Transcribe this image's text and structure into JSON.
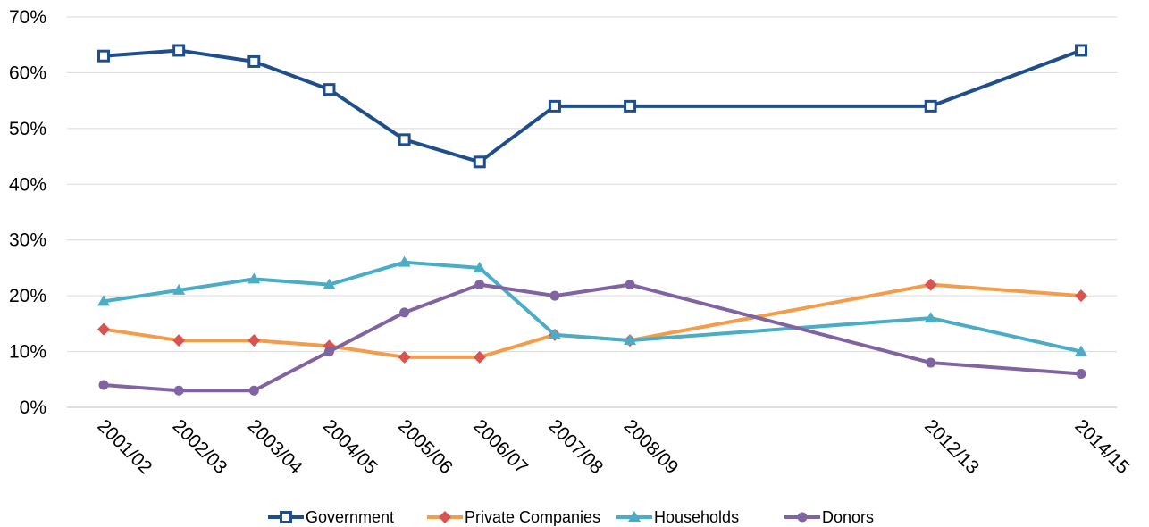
{
  "chart_data": {
    "type": "line",
    "title": "",
    "xlabel": "",
    "ylabel": "",
    "categories": [
      "2001/02",
      "2002/03",
      "2003/04",
      "2004/05",
      "2005/06",
      "2006/07",
      "2007/08",
      "2008/09",
      "2012/13",
      "2014/15"
    ],
    "x_years": [
      2001,
      2002,
      2003,
      2004,
      2005,
      2006,
      2007,
      2008,
      2012,
      2014
    ],
    "ylim": [
      0,
      70
    ],
    "yticks": [
      0,
      10,
      20,
      30,
      40,
      50,
      60,
      70
    ],
    "ytick_labels": [
      "0%",
      "10%",
      "20%",
      "30%",
      "40%",
      "50%",
      "60%",
      "70%"
    ],
    "grid": "horizontal",
    "legend_position": "bottom",
    "series": [
      {
        "name": "Government",
        "color": "#1f4e8c",
        "marker": "square",
        "values": [
          63,
          64,
          62,
          57,
          48,
          44,
          54,
          54,
          54,
          64
        ]
      },
      {
        "name": "Private Companies",
        "color": "#f39c4a",
        "marker_color": "#d9534f",
        "marker": "diamond",
        "values": [
          14,
          12,
          12,
          11,
          9,
          9,
          13,
          12,
          22,
          20
        ]
      },
      {
        "name": "Households",
        "color": "#4bacc6",
        "marker": "triangle",
        "values": [
          19,
          21,
          23,
          22,
          26,
          25,
          13,
          12,
          16,
          10
        ]
      },
      {
        "name": "Donors",
        "color": "#8064a2",
        "marker": "circle",
        "values": [
          4,
          3,
          3,
          10,
          17,
          22,
          20,
          22,
          8,
          6
        ]
      }
    ]
  }
}
